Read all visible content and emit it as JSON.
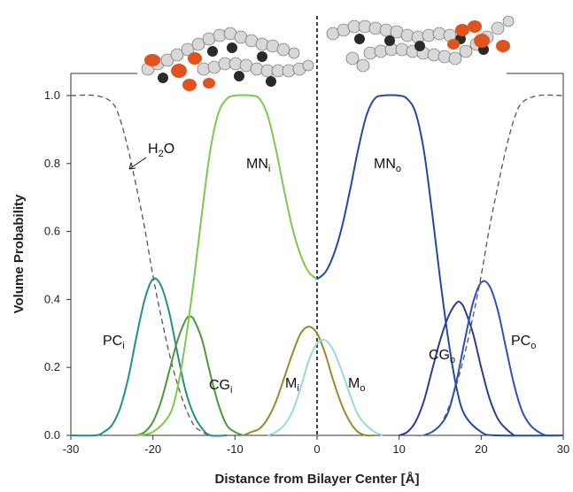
{
  "chart_data": {
    "type": "line",
    "xlabel": "Distance from Bilayer Center [Å]",
    "ylabel": "Volume Probability",
    "xlim": [
      -30,
      30
    ],
    "ylim": [
      0,
      1.0
    ],
    "x_ticks": [
      "-30",
      "-20",
      "-10",
      "0",
      "10",
      "20",
      "30"
    ],
    "y_ticks": [
      "0.0",
      "0.2",
      "0.4",
      "0.6",
      "0.8",
      "1.0"
    ],
    "grid": false,
    "center_line_x": 0,
    "series": [
      {
        "name": "H2O",
        "label_main": "H",
        "label_sub": "2",
        "label_tail": "O",
        "color": "#555555",
        "style": "dashed",
        "points": [
          [
            -30,
            1.0
          ],
          [
            -27,
            1.0
          ],
          [
            -25,
            0.98
          ],
          [
            -24,
            0.93
          ],
          [
            -23,
            0.84
          ],
          [
            -22,
            0.73
          ],
          [
            -21,
            0.61
          ],
          [
            -20,
            0.47
          ],
          [
            -19,
            0.35
          ],
          [
            -18,
            0.24
          ],
          [
            -17,
            0.15
          ],
          [
            -16,
            0.08
          ],
          [
            -15,
            0.03
          ],
          [
            -14,
            0.01
          ],
          [
            -13,
            0.0
          ],
          [
            -12,
            0.0
          ],
          [
            12,
            0.0
          ],
          [
            13,
            0.0
          ],
          [
            14,
            0.01
          ],
          [
            15,
            0.03
          ],
          [
            16,
            0.08
          ],
          [
            17,
            0.15
          ],
          [
            18,
            0.24
          ],
          [
            19,
            0.35
          ],
          [
            20,
            0.47
          ],
          [
            21,
            0.61
          ],
          [
            22,
            0.73
          ],
          [
            23,
            0.84
          ],
          [
            24,
            0.93
          ],
          [
            25,
            0.98
          ],
          [
            27,
            1.0
          ],
          [
            30,
            1.0
          ]
        ]
      },
      {
        "name": "PCi",
        "label_main": "PC",
        "label_sub": "i",
        "color": "#1f8f8a",
        "style": "solid",
        "points": [
          [
            -30,
            0.0
          ],
          [
            -27,
            0.0
          ],
          [
            -26,
            0.01
          ],
          [
            -25,
            0.03
          ],
          [
            -24,
            0.08
          ],
          [
            -23,
            0.17
          ],
          [
            -22,
            0.29
          ],
          [
            -21,
            0.4
          ],
          [
            -20,
            0.46
          ],
          [
            -19,
            0.44
          ],
          [
            -18,
            0.36
          ],
          [
            -17,
            0.24
          ],
          [
            -16,
            0.13
          ],
          [
            -15,
            0.06
          ],
          [
            -14,
            0.02
          ],
          [
            -13,
            0.0
          ],
          [
            -11,
            0.0
          ]
        ]
      },
      {
        "name": "CGi",
        "label_main": "CG",
        "label_sub": "i",
        "color": "#4a9a3a",
        "style": "solid",
        "points": [
          [
            -22,
            0.0
          ],
          [
            -21,
            0.01
          ],
          [
            -20,
            0.04
          ],
          [
            -19,
            0.1
          ],
          [
            -18,
            0.19
          ],
          [
            -17,
            0.28
          ],
          [
            -16,
            0.34
          ],
          [
            -15.5,
            0.35
          ],
          [
            -15,
            0.34
          ],
          [
            -14,
            0.28
          ],
          [
            -13,
            0.18
          ],
          [
            -12,
            0.09
          ],
          [
            -11,
            0.03
          ],
          [
            -10,
            0.01
          ],
          [
            -9,
            0.0
          ]
        ]
      },
      {
        "name": "MNi",
        "label_main": "MN",
        "label_sub": "i",
        "color": "#7cc850",
        "style": "solid",
        "points": [
          [
            -22,
            0.0
          ],
          [
            -20,
            0.01
          ],
          [
            -18,
            0.06
          ],
          [
            -17,
            0.14
          ],
          [
            -16,
            0.28
          ],
          [
            -15,
            0.46
          ],
          [
            -14,
            0.66
          ],
          [
            -13,
            0.84
          ],
          [
            -12,
            0.95
          ],
          [
            -11,
            0.99
          ],
          [
            -10,
            1.0
          ],
          [
            -8,
            1.0
          ],
          [
            -7,
            0.99
          ],
          [
            -6,
            0.94
          ],
          [
            -5,
            0.84
          ],
          [
            -4,
            0.72
          ],
          [
            -3,
            0.61
          ],
          [
            -2,
            0.53
          ],
          [
            -1,
            0.48
          ],
          [
            0,
            0.46
          ]
        ]
      },
      {
        "name": "Mi",
        "label_main": "M",
        "label_sub": "i",
        "color": "#9a8a2e",
        "style": "solid",
        "points": [
          [
            -9,
            0.0
          ],
          [
            -8,
            0.01
          ],
          [
            -7,
            0.02
          ],
          [
            -6,
            0.05
          ],
          [
            -5,
            0.1
          ],
          [
            -4,
            0.17
          ],
          [
            -3,
            0.24
          ],
          [
            -2,
            0.3
          ],
          [
            -1,
            0.32
          ],
          [
            0,
            0.3
          ],
          [
            1,
            0.24
          ],
          [
            2,
            0.16
          ],
          [
            3,
            0.09
          ],
          [
            4,
            0.04
          ],
          [
            5,
            0.01
          ],
          [
            6,
            0.0
          ],
          [
            7,
            0.0
          ]
        ]
      },
      {
        "name": "Mo",
        "label_main": "M",
        "label_sub": "o",
        "color": "#9ad8dc",
        "style": "solid",
        "points": [
          [
            -6,
            0.0
          ],
          [
            -5,
            0.01
          ],
          [
            -4,
            0.03
          ],
          [
            -3,
            0.07
          ],
          [
            -2,
            0.14
          ],
          [
            -1,
            0.22
          ],
          [
            0,
            0.27
          ],
          [
            1,
            0.28
          ],
          [
            2,
            0.25
          ],
          [
            3,
            0.19
          ],
          [
            4,
            0.12
          ],
          [
            5,
            0.06
          ],
          [
            6,
            0.03
          ],
          [
            7,
            0.01
          ],
          [
            8,
            0.0
          ]
        ]
      },
      {
        "name": "MNo",
        "label_main": "MN",
        "label_sub": "o",
        "color": "#2448a8",
        "style": "solid",
        "points": [
          [
            0,
            0.46
          ],
          [
            1,
            0.48
          ],
          [
            2,
            0.53
          ],
          [
            3,
            0.61
          ],
          [
            4,
            0.72
          ],
          [
            5,
            0.84
          ],
          [
            6,
            0.94
          ],
          [
            7,
            0.99
          ],
          [
            8,
            1.0
          ],
          [
            10,
            1.0
          ],
          [
            11,
            0.99
          ],
          [
            12,
            0.95
          ],
          [
            13,
            0.84
          ],
          [
            14,
            0.66
          ],
          [
            15,
            0.46
          ],
          [
            16,
            0.28
          ],
          [
            17,
            0.14
          ],
          [
            18,
            0.06
          ],
          [
            20,
            0.01
          ],
          [
            22,
            0.0
          ],
          [
            30,
            0.0
          ]
        ]
      },
      {
        "name": "CGo",
        "label_main": "CG",
        "label_sub": "o",
        "color": "#2c3f8e",
        "style": "solid",
        "points": [
          [
            10,
            0.0
          ],
          [
            11,
            0.01
          ],
          [
            12,
            0.04
          ],
          [
            13,
            0.1
          ],
          [
            14,
            0.19
          ],
          [
            15,
            0.28
          ],
          [
            16,
            0.35
          ],
          [
            17,
            0.39
          ],
          [
            17.5,
            0.39
          ],
          [
            18,
            0.37
          ],
          [
            19,
            0.3
          ],
          [
            20,
            0.2
          ],
          [
            21,
            0.11
          ],
          [
            22,
            0.05
          ],
          [
            23,
            0.02
          ],
          [
            24,
            0.0
          ]
        ]
      },
      {
        "name": "PCo",
        "label_main": "PC",
        "label_sub": "o",
        "color": "#3050b8",
        "style": "solid",
        "points": [
          [
            13,
            0.0
          ],
          [
            14,
            0.01
          ],
          [
            15,
            0.03
          ],
          [
            16,
            0.07
          ],
          [
            17,
            0.16
          ],
          [
            18,
            0.28
          ],
          [
            19,
            0.39
          ],
          [
            20,
            0.45
          ],
          [
            21,
            0.44
          ],
          [
            22,
            0.37
          ],
          [
            23,
            0.26
          ],
          [
            24,
            0.15
          ],
          [
            25,
            0.07
          ],
          [
            26,
            0.03
          ],
          [
            27,
            0.01
          ],
          [
            28,
            0.0
          ],
          [
            30,
            0.0
          ]
        ]
      }
    ]
  }
}
